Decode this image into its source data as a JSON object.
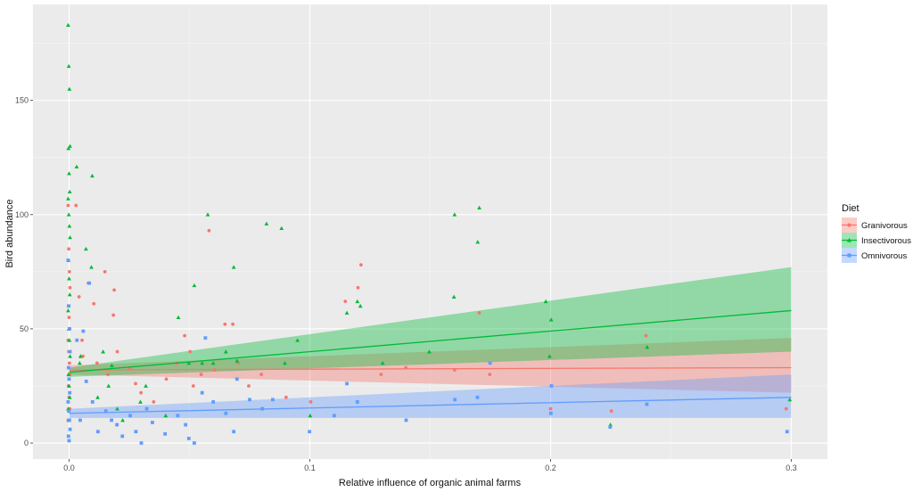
{
  "chart_data": {
    "type": "scatter",
    "xlabel": "Relative influence of organic animal farms",
    "ylabel": "Bird abundance",
    "xlim": [
      -0.015,
      0.315
    ],
    "ylim": [
      -7,
      192
    ],
    "x_ticks": [
      0.0,
      0.1,
      0.2,
      0.3
    ],
    "x_tick_labels": [
      "0.0",
      "0.1",
      "0.2",
      "0.3"
    ],
    "y_ticks": [
      0,
      50,
      100,
      150
    ],
    "y_tick_labels": [
      "0",
      "50",
      "100",
      "150"
    ],
    "grid": true,
    "legend": {
      "title": "Diet",
      "position": "right"
    },
    "series": [
      {
        "name": "Granivorous",
        "color": "#F8766D",
        "marker": "circle",
        "fit": {
          "x": [
            0,
            0.3
          ],
          "y": [
            32,
            33
          ]
        },
        "band": {
          "x": [
            0,
            0.3
          ],
          "upper": [
            34,
            46
          ],
          "lower": [
            30,
            22
          ]
        },
        "points": [
          [
            0.0,
            104
          ],
          [
            0.0,
            85
          ],
          [
            0.0,
            75
          ],
          [
            0.0,
            68
          ],
          [
            0.0,
            60
          ],
          [
            0.0,
            55
          ],
          [
            0.0,
            50
          ],
          [
            0.0,
            45
          ],
          [
            0.0,
            40
          ],
          [
            0.0,
            35
          ],
          [
            0.0,
            30
          ],
          [
            0.0,
            25
          ],
          [
            0.0,
            20
          ],
          [
            0.0,
            15
          ],
          [
            0.0,
            10
          ],
          [
            0.003,
            104
          ],
          [
            0.004,
            64
          ],
          [
            0.005,
            45
          ],
          [
            0.006,
            38
          ],
          [
            0.008,
            70
          ],
          [
            0.01,
            61
          ],
          [
            0.012,
            35
          ],
          [
            0.015,
            75
          ],
          [
            0.016,
            30
          ],
          [
            0.018,
            56
          ],
          [
            0.019,
            67
          ],
          [
            0.02,
            40
          ],
          [
            0.025,
            33
          ],
          [
            0.028,
            26
          ],
          [
            0.03,
            22
          ],
          [
            0.035,
            18
          ],
          [
            0.04,
            28
          ],
          [
            0.045,
            35
          ],
          [
            0.048,
            47
          ],
          [
            0.05,
            40
          ],
          [
            0.052,
            25
          ],
          [
            0.055,
            30
          ],
          [
            0.058,
            93
          ],
          [
            0.06,
            32
          ],
          [
            0.065,
            52
          ],
          [
            0.068,
            52
          ],
          [
            0.07,
            35
          ],
          [
            0.075,
            25
          ],
          [
            0.08,
            30
          ],
          [
            0.09,
            20
          ],
          [
            0.1,
            18
          ],
          [
            0.115,
            62
          ],
          [
            0.12,
            68
          ],
          [
            0.121,
            78
          ],
          [
            0.13,
            30
          ],
          [
            0.14,
            33
          ],
          [
            0.16,
            32
          ],
          [
            0.17,
            57
          ],
          [
            0.175,
            30
          ],
          [
            0.2,
            15
          ],
          [
            0.225,
            14
          ],
          [
            0.24,
            47
          ],
          [
            0.298,
            15
          ]
        ]
      },
      {
        "name": "Insectivorous",
        "color": "#00BA38",
        "marker": "triangle",
        "fit": {
          "x": [
            0,
            0.3
          ],
          "y": [
            31,
            58
          ]
        },
        "band": {
          "x": [
            0,
            0.3
          ],
          "upper": [
            33,
            77
          ],
          "lower": [
            29,
            40
          ]
        },
        "points": [
          [
            0.0,
            183
          ],
          [
            0.0,
            165
          ],
          [
            0.0,
            155
          ],
          [
            0.0,
            130
          ],
          [
            0.0,
            129
          ],
          [
            0.0,
            118
          ],
          [
            0.0,
            110
          ],
          [
            0.0,
            107
          ],
          [
            0.0,
            100
          ],
          [
            0.0,
            95
          ],
          [
            0.0,
            90
          ],
          [
            0.0,
            80
          ],
          [
            0.0,
            72
          ],
          [
            0.0,
            65
          ],
          [
            0.0,
            58
          ],
          [
            0.0,
            50
          ],
          [
            0.0,
            45
          ],
          [
            0.0,
            38
          ],
          [
            0.0,
            30
          ],
          [
            0.0,
            25
          ],
          [
            0.0,
            20
          ],
          [
            0.0,
            15
          ],
          [
            0.0,
            10
          ],
          [
            0.003,
            121
          ],
          [
            0.004,
            35
          ],
          [
            0.005,
            38
          ],
          [
            0.007,
            85
          ],
          [
            0.009,
            77
          ],
          [
            0.01,
            117
          ],
          [
            0.012,
            20
          ],
          [
            0.014,
            40
          ],
          [
            0.016,
            25
          ],
          [
            0.018,
            34
          ],
          [
            0.02,
            15
          ],
          [
            0.022,
            10
          ],
          [
            0.03,
            18
          ],
          [
            0.032,
            25
          ],
          [
            0.04,
            12
          ],
          [
            0.045,
            55
          ],
          [
            0.05,
            35
          ],
          [
            0.052,
            69
          ],
          [
            0.055,
            35
          ],
          [
            0.058,
            100
          ],
          [
            0.06,
            35
          ],
          [
            0.065,
            40
          ],
          [
            0.068,
            77
          ],
          [
            0.07,
            36
          ],
          [
            0.082,
            96
          ],
          [
            0.088,
            94
          ],
          [
            0.09,
            35
          ],
          [
            0.095,
            45
          ],
          [
            0.1,
            12
          ],
          [
            0.115,
            57
          ],
          [
            0.12,
            62
          ],
          [
            0.121,
            60
          ],
          [
            0.13,
            35
          ],
          [
            0.15,
            40
          ],
          [
            0.16,
            64
          ],
          [
            0.16,
            100
          ],
          [
            0.17,
            103
          ],
          [
            0.17,
            88
          ],
          [
            0.198,
            62
          ],
          [
            0.2,
            54
          ],
          [
            0.2,
            38
          ],
          [
            0.225,
            8
          ],
          [
            0.24,
            42
          ],
          [
            0.299,
            19
          ]
        ]
      },
      {
        "name": "Omnivorous",
        "color": "#619CFF",
        "marker": "square",
        "fit": {
          "x": [
            0,
            0.3
          ],
          "y": [
            13,
            20
          ]
        },
        "band": {
          "x": [
            0,
            0.3
          ],
          "upper": [
            15,
            30
          ],
          "lower": [
            11,
            11
          ]
        },
        "points": [
          [
            0.0,
            80
          ],
          [
            0.0,
            60
          ],
          [
            0.0,
            50
          ],
          [
            0.0,
            40
          ],
          [
            0.0,
            33
          ],
          [
            0.0,
            28
          ],
          [
            0.0,
            22
          ],
          [
            0.0,
            18
          ],
          [
            0.0,
            14
          ],
          [
            0.0,
            10
          ],
          [
            0.0,
            6
          ],
          [
            0.0,
            3
          ],
          [
            0.0,
            1
          ],
          [
            0.003,
            45
          ],
          [
            0.005,
            10
          ],
          [
            0.006,
            49
          ],
          [
            0.007,
            27
          ],
          [
            0.008,
            70
          ],
          [
            0.01,
            18
          ],
          [
            0.012,
            5
          ],
          [
            0.015,
            14
          ],
          [
            0.018,
            10
          ],
          [
            0.02,
            8
          ],
          [
            0.022,
            3
          ],
          [
            0.025,
            12
          ],
          [
            0.028,
            5
          ],
          [
            0.03,
            0
          ],
          [
            0.032,
            15
          ],
          [
            0.035,
            9
          ],
          [
            0.04,
            4
          ],
          [
            0.045,
            12
          ],
          [
            0.048,
            8
          ],
          [
            0.05,
            2
          ],
          [
            0.052,
            0
          ],
          [
            0.055,
            22
          ],
          [
            0.057,
            46
          ],
          [
            0.06,
            18
          ],
          [
            0.065,
            13
          ],
          [
            0.068,
            5
          ],
          [
            0.07,
            28
          ],
          [
            0.075,
            19
          ],
          [
            0.08,
            15
          ],
          [
            0.085,
            19
          ],
          [
            0.1,
            5
          ],
          [
            0.11,
            12
          ],
          [
            0.115,
            26
          ],
          [
            0.12,
            18
          ],
          [
            0.14,
            10
          ],
          [
            0.16,
            19
          ],
          [
            0.17,
            20
          ],
          [
            0.175,
            35
          ],
          [
            0.2,
            13
          ],
          [
            0.2,
            25
          ],
          [
            0.225,
            7
          ],
          [
            0.24,
            17
          ],
          [
            0.298,
            5
          ]
        ]
      }
    ]
  }
}
